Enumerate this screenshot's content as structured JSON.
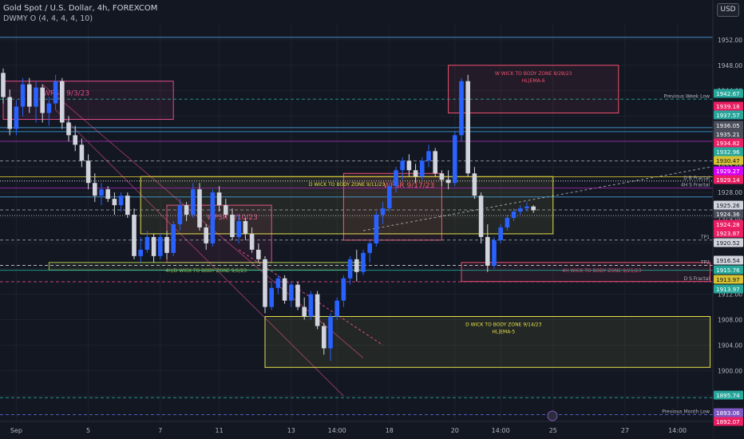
{
  "header": {
    "title": "Gold Spot / U.S. Dollar, 4h, FOREXCOM",
    "indicator": "DWMY O (4, 4, 4, 4, 10)",
    "currency": "USD"
  },
  "chart_data": {
    "type": "candlestick",
    "y_range": [
      1892,
      1954.5
    ],
    "price_ticks": [
      1952.0,
      1948.0,
      1944.0,
      1940.0,
      1936.0,
      1932.0,
      1928.0,
      1924.0,
      1920.0,
      1916.0,
      1912.0,
      1908.0,
      1904.0,
      1900.0,
      1896.0
    ],
    "x_labels": [
      {
        "label": "Sep",
        "i": 2
      },
      {
        "label": "5",
        "i": 13
      },
      {
        "label": "7",
        "i": 24
      },
      {
        "label": "11",
        "i": 33
      },
      {
        "label": "13",
        "i": 44
      },
      {
        "label": "14:00",
        "i": 51
      },
      {
        "label": "18",
        "i": 59
      },
      {
        "label": "20",
        "i": 69
      },
      {
        "label": "14:00",
        "i": 76
      },
      {
        "label": "25",
        "i": 84
      },
      {
        "label": "27",
        "i": 95
      },
      {
        "label": "14:00",
        "i": 103
      }
    ],
    "candles": [
      [
        1946.8,
        1947.5,
        1942.0,
        1943.0
      ],
      [
        1943.0,
        1944.2,
        1937.0,
        1938.0
      ],
      [
        1938.0,
        1942.5,
        1937.0,
        1941.5
      ],
      [
        1941.5,
        1946.0,
        1940.0,
        1945.0
      ],
      [
        1945.0,
        1946.0,
        1940.5,
        1941.5
      ],
      [
        1941.5,
        1945.5,
        1939.0,
        1944.5
      ],
      [
        1944.5,
        1945.0,
        1939.0,
        1940.5
      ],
      [
        1940.5,
        1943.0,
        1938.5,
        1942.0
      ],
      [
        1942.0,
        1946.5,
        1941.0,
        1945.5
      ],
      [
        1945.5,
        1946.0,
        1938.0,
        1939.0
      ],
      [
        1939.0,
        1940.0,
        1936.0,
        1937.0
      ],
      [
        1937.0,
        1938.5,
        1934.5,
        1935.5
      ],
      [
        1935.5,
        1936.5,
        1932.0,
        1933.0
      ],
      [
        1933.0,
        1934.0,
        1928.5,
        1929.5
      ],
      [
        1929.5,
        1931.0,
        1926.5,
        1927.5
      ],
      [
        1927.5,
        1929.5,
        1926.0,
        1928.5
      ],
      [
        1928.5,
        1929.0,
        1926.5,
        1927.0
      ],
      [
        1927.0,
        1928.0,
        1924.5,
        1926.0
      ],
      [
        1926.0,
        1928.0,
        1925.0,
        1927.5
      ],
      [
        1927.5,
        1928.0,
        1924.0,
        1924.5
      ],
      [
        1924.5,
        1925.5,
        1917.5,
        1918.0
      ],
      [
        1918.0,
        1921.0,
        1917.0,
        1919.0
      ],
      [
        1919.0,
        1922.0,
        1918.5,
        1921.0
      ],
      [
        1921.0,
        1921.5,
        1917.0,
        1918.0
      ],
      [
        1918.0,
        1921.5,
        1917.5,
        1921.0
      ],
      [
        1921.0,
        1922.0,
        1917.5,
        1918.5
      ],
      [
        1918.5,
        1923.5,
        1918.0,
        1923.0
      ],
      [
        1923.0,
        1927.0,
        1922.0,
        1926.0
      ],
      [
        1926.0,
        1926.5,
        1923.5,
        1924.5
      ],
      [
        1924.5,
        1929.5,
        1924.0,
        1928.5
      ],
      [
        1928.5,
        1929.5,
        1922.0,
        1922.5
      ],
      [
        1922.5,
        1923.0,
        1919.0,
        1920.0
      ],
      [
        1920.0,
        1928.5,
        1919.5,
        1928.0
      ],
      [
        1928.0,
        1929.0,
        1925.0,
        1926.0
      ],
      [
        1926.0,
        1927.0,
        1924.0,
        1924.5
      ],
      [
        1924.5,
        1925.5,
        1920.5,
        1921.0
      ],
      [
        1921.0,
        1924.5,
        1920.0,
        1923.5
      ],
      [
        1923.5,
        1924.0,
        1920.5,
        1921.5
      ],
      [
        1921.5,
        1922.5,
        1918.5,
        1919.0
      ],
      [
        1919.0,
        1920.0,
        1917.0,
        1917.5
      ],
      [
        1917.5,
        1918.0,
        1909.0,
        1910.0
      ],
      [
        1910.0,
        1914.0,
        1909.5,
        1913.0
      ],
      [
        1913.0,
        1915.0,
        1912.0,
        1914.5
      ],
      [
        1914.5,
        1915.0,
        1910.5,
        1911.0
      ],
      [
        1911.0,
        1914.0,
        1910.0,
        1913.5
      ],
      [
        1913.5,
        1914.0,
        1909.5,
        1910.0
      ],
      [
        1910.0,
        1911.5,
        1908.0,
        1908.5
      ],
      [
        1908.5,
        1912.5,
        1908.0,
        1912.0
      ],
      [
        1912.0,
        1912.5,
        1906.5,
        1907.0
      ],
      [
        1907.0,
        1907.5,
        1902.5,
        1903.5
      ],
      [
        1903.5,
        1909.0,
        1901.5,
        1908.5
      ],
      [
        1908.5,
        1911.5,
        1908.0,
        1911.0
      ],
      [
        1911.0,
        1915.0,
        1910.0,
        1914.5
      ],
      [
        1914.5,
        1918.0,
        1913.5,
        1917.5
      ],
      [
        1917.5,
        1919.0,
        1914.0,
        1915.5
      ],
      [
        1915.5,
        1919.0,
        1915.0,
        1918.5
      ],
      [
        1918.5,
        1920.5,
        1917.0,
        1920.0
      ],
      [
        1920.0,
        1925.0,
        1919.5,
        1924.5
      ],
      [
        1924.5,
        1926.5,
        1923.0,
        1925.5
      ],
      [
        1925.5,
        1929.5,
        1925.0,
        1929.0
      ],
      [
        1929.0,
        1932.0,
        1928.0,
        1931.5
      ],
      [
        1931.5,
        1933.5,
        1930.0,
        1933.0
      ],
      [
        1933.0,
        1934.0,
        1930.5,
        1931.5
      ],
      [
        1931.5,
        1932.5,
        1929.5,
        1930.5
      ],
      [
        1930.5,
        1933.5,
        1930.0,
        1933.0
      ],
      [
        1933.0,
        1935.5,
        1932.0,
        1934.5
      ],
      [
        1934.5,
        1935.0,
        1930.5,
        1931.0
      ],
      [
        1931.0,
        1931.5,
        1929.0,
        1930.0
      ],
      [
        1930.0,
        1931.5,
        1928.5,
        1929.5
      ],
      [
        1929.5,
        1937.5,
        1929.0,
        1937.0
      ],
      [
        1937.0,
        1946.0,
        1936.0,
        1945.5
      ],
      [
        1945.5,
        1946.5,
        1930.5,
        1931.0
      ],
      [
        1931.0,
        1932.0,
        1927.0,
        1927.5
      ],
      [
        1927.5,
        1928.0,
        1920.0,
        1921.0
      ],
      [
        1921.0,
        1923.0,
        1915.5,
        1916.5
      ],
      [
        1916.5,
        1921.0,
        1916.0,
        1920.5
      ],
      [
        1920.5,
        1923.0,
        1920.0,
        1922.5
      ],
      [
        1922.5,
        1924.5,
        1922.0,
        1924.0
      ],
      [
        1924.0,
        1925.5,
        1923.5,
        1925.0
      ],
      [
        1925.0,
        1926.0,
        1924.5,
        1925.5
      ],
      [
        1925.5,
        1926.5,
        1925.0,
        1925.8
      ],
      [
        1925.8,
        1926.0,
        1924.8,
        1925.2
      ]
    ],
    "zones": [
      {
        "label": "WPSR 9/3/23",
        "x0": 0,
        "x1": 26,
        "y0": 1939.5,
        "y1": 1945.5,
        "color": "#e04a8a"
      },
      {
        "label": "WPSR 9/17/23",
        "x0": 52,
        "x1": 67,
        "y0": 1920.5,
        "y1": 1931.0,
        "color": "#f0506e"
      },
      {
        "label": "WPSR 9/10/23",
        "x0": 25,
        "x1": 41,
        "y0": 1917.0,
        "y1": 1926.0,
        "color": "#e04a8a"
      },
      {
        "label": "W WICK TO BODY ZONE 8/28/23\nHL|EMA-6",
        "x0": 68,
        "x1": 94,
        "y0": 1940.5,
        "y1": 1948.0,
        "color": "#f0506e"
      },
      {
        "label": "D WICK TO BODY ZONE 9/11/23",
        "x0": 21,
        "x1": 84,
        "y0": 1921.5,
        "y1": 1930.5,
        "color": "#e6e24c"
      },
      {
        "label": "D WICK TO BODY ZONE 9/14/23\nHL|EMA-5",
        "x0": 40,
        "x1": 108,
        "y0": 1900.5,
        "y1": 1908.5,
        "color": "#e6e24c"
      },
      {
        "label": "4H WICK TO BODY ZONE 9/21/23",
        "x0": 70,
        "x1": 108,
        "y0": 1914.0,
        "y1": 1917.0,
        "color": "#f0506e"
      },
      {
        "label": "4H/D WICK TO BODY ZONE 9/6/23",
        "x0": 7,
        "x1": 55,
        "y0": 1915.8,
        "y1": 1917.0,
        "color": "#a2c44a"
      }
    ],
    "lines": [
      {
        "price": 1952.4,
        "color": "#4aa3d9",
        "style": "solid"
      },
      {
        "price": 1942.67,
        "color": "#26a69a",
        "style": "dashed",
        "label": "Previous Week Low"
      },
      {
        "price": 1938.2,
        "color": "#4aa3d9",
        "style": "solid"
      },
      {
        "price": 1937.57,
        "color": "#3c9ed8",
        "style": "solid"
      },
      {
        "price": 1936.05,
        "color": "#9c27b0",
        "style": "solid"
      },
      {
        "price": 1932.96,
        "color": "#9aa0a6",
        "style": "dashed"
      },
      {
        "price": 1930.47,
        "color": "#d6c234",
        "style": "solid"
      },
      {
        "price": 1929.8,
        "color": "#ffffff",
        "style": "dotted",
        "label": "D B Fractal"
      },
      {
        "price": 1928.7,
        "color": "#9c27b0",
        "style": "solid",
        "label": "4H S Fractal"
      },
      {
        "price": 1927.3,
        "color": "#4aa3d9",
        "style": "solid"
      },
      {
        "price": 1925.26,
        "color": "#9aa0a6",
        "style": "dashed"
      },
      {
        "price": 1924.36,
        "color": "#d1d4dc",
        "style": "dotted"
      },
      {
        "price": 1920.52,
        "color": "#9aa0a6",
        "style": "dashed",
        "label": "TP1"
      },
      {
        "price": 1916.54,
        "color": "#d1d4dc",
        "style": "dashed",
        "label": "TP2"
      },
      {
        "price": 1915.76,
        "color": "#26a69a",
        "style": "solid"
      },
      {
        "price": 1913.97,
        "color": "#e04a8a",
        "style": "dashed",
        "label": "D S Fractal"
      },
      {
        "price": 1895.74,
        "color": "#26a69a",
        "style": "dashed"
      },
      {
        "price": 1893.06,
        "color": "#5f6ad6",
        "style": "dashed",
        "label": "Previous Month Low"
      }
    ],
    "price_badges": [
      {
        "value": "1942.67",
        "color": "#26a69a"
      },
      {
        "value": "1939.18",
        "color": "#e91e63"
      },
      {
        "value": "1937.57",
        "color": "#26a69a"
      },
      {
        "value": "1936.05",
        "color": "#4a4e5a"
      },
      {
        "value": "1935.21",
        "color": "#4a4e5a"
      },
      {
        "value": "1934.82",
        "color": "#e91e63"
      },
      {
        "value": "1932.96",
        "color": "#26a69a"
      },
      {
        "value": "1930.47",
        "color": "#d6c234"
      },
      {
        "value": "1929.27",
        "color": "#d500f9"
      },
      {
        "value": "1929.14",
        "color": "#e91e63"
      },
      {
        "value": "1925.26",
        "color": "#d1d4dc"
      },
      {
        "value": "1924.36",
        "color": "#4a4e5a"
      },
      {
        "value": "1924.28",
        "color": "#e91e63"
      },
      {
        "value": "1923.87",
        "color": "#e91e63"
      },
      {
        "value": "1920.52",
        "color": "#d1d4dc"
      },
      {
        "value": "1916.54",
        "color": "#d1d4dc"
      },
      {
        "value": "1915.76",
        "color": "#26a69a"
      },
      {
        "value": "1913.97",
        "color": "#d6c234"
      },
      {
        "value": "1913.97",
        "color": "#26a69a"
      },
      {
        "value": "1895.74",
        "color": "#26a69a"
      },
      {
        "value": "1893.06",
        "color": "#7e57c2"
      },
      {
        "value": "1892.07",
        "color": "#e91e63"
      }
    ],
    "small_labels": [
      {
        "text": "Previous Week Low",
        "price": 1942.67
      },
      {
        "text": "D B Fractal",
        "price": 1929.8
      },
      {
        "text": "4H S Fractal",
        "price": 1928.7
      },
      {
        "text": "TP1",
        "price": 1920.52
      },
      {
        "text": "TP2",
        "price": 1916.54
      },
      {
        "text": "D S Fractal",
        "price": 1913.97
      },
      {
        "text": "Previous Month Low",
        "price": 1893.06
      }
    ],
    "colors": {
      "up": "#2962ff",
      "down": "#d1d4dc",
      "background": "#131722",
      "grid": "#1e222d"
    }
  }
}
